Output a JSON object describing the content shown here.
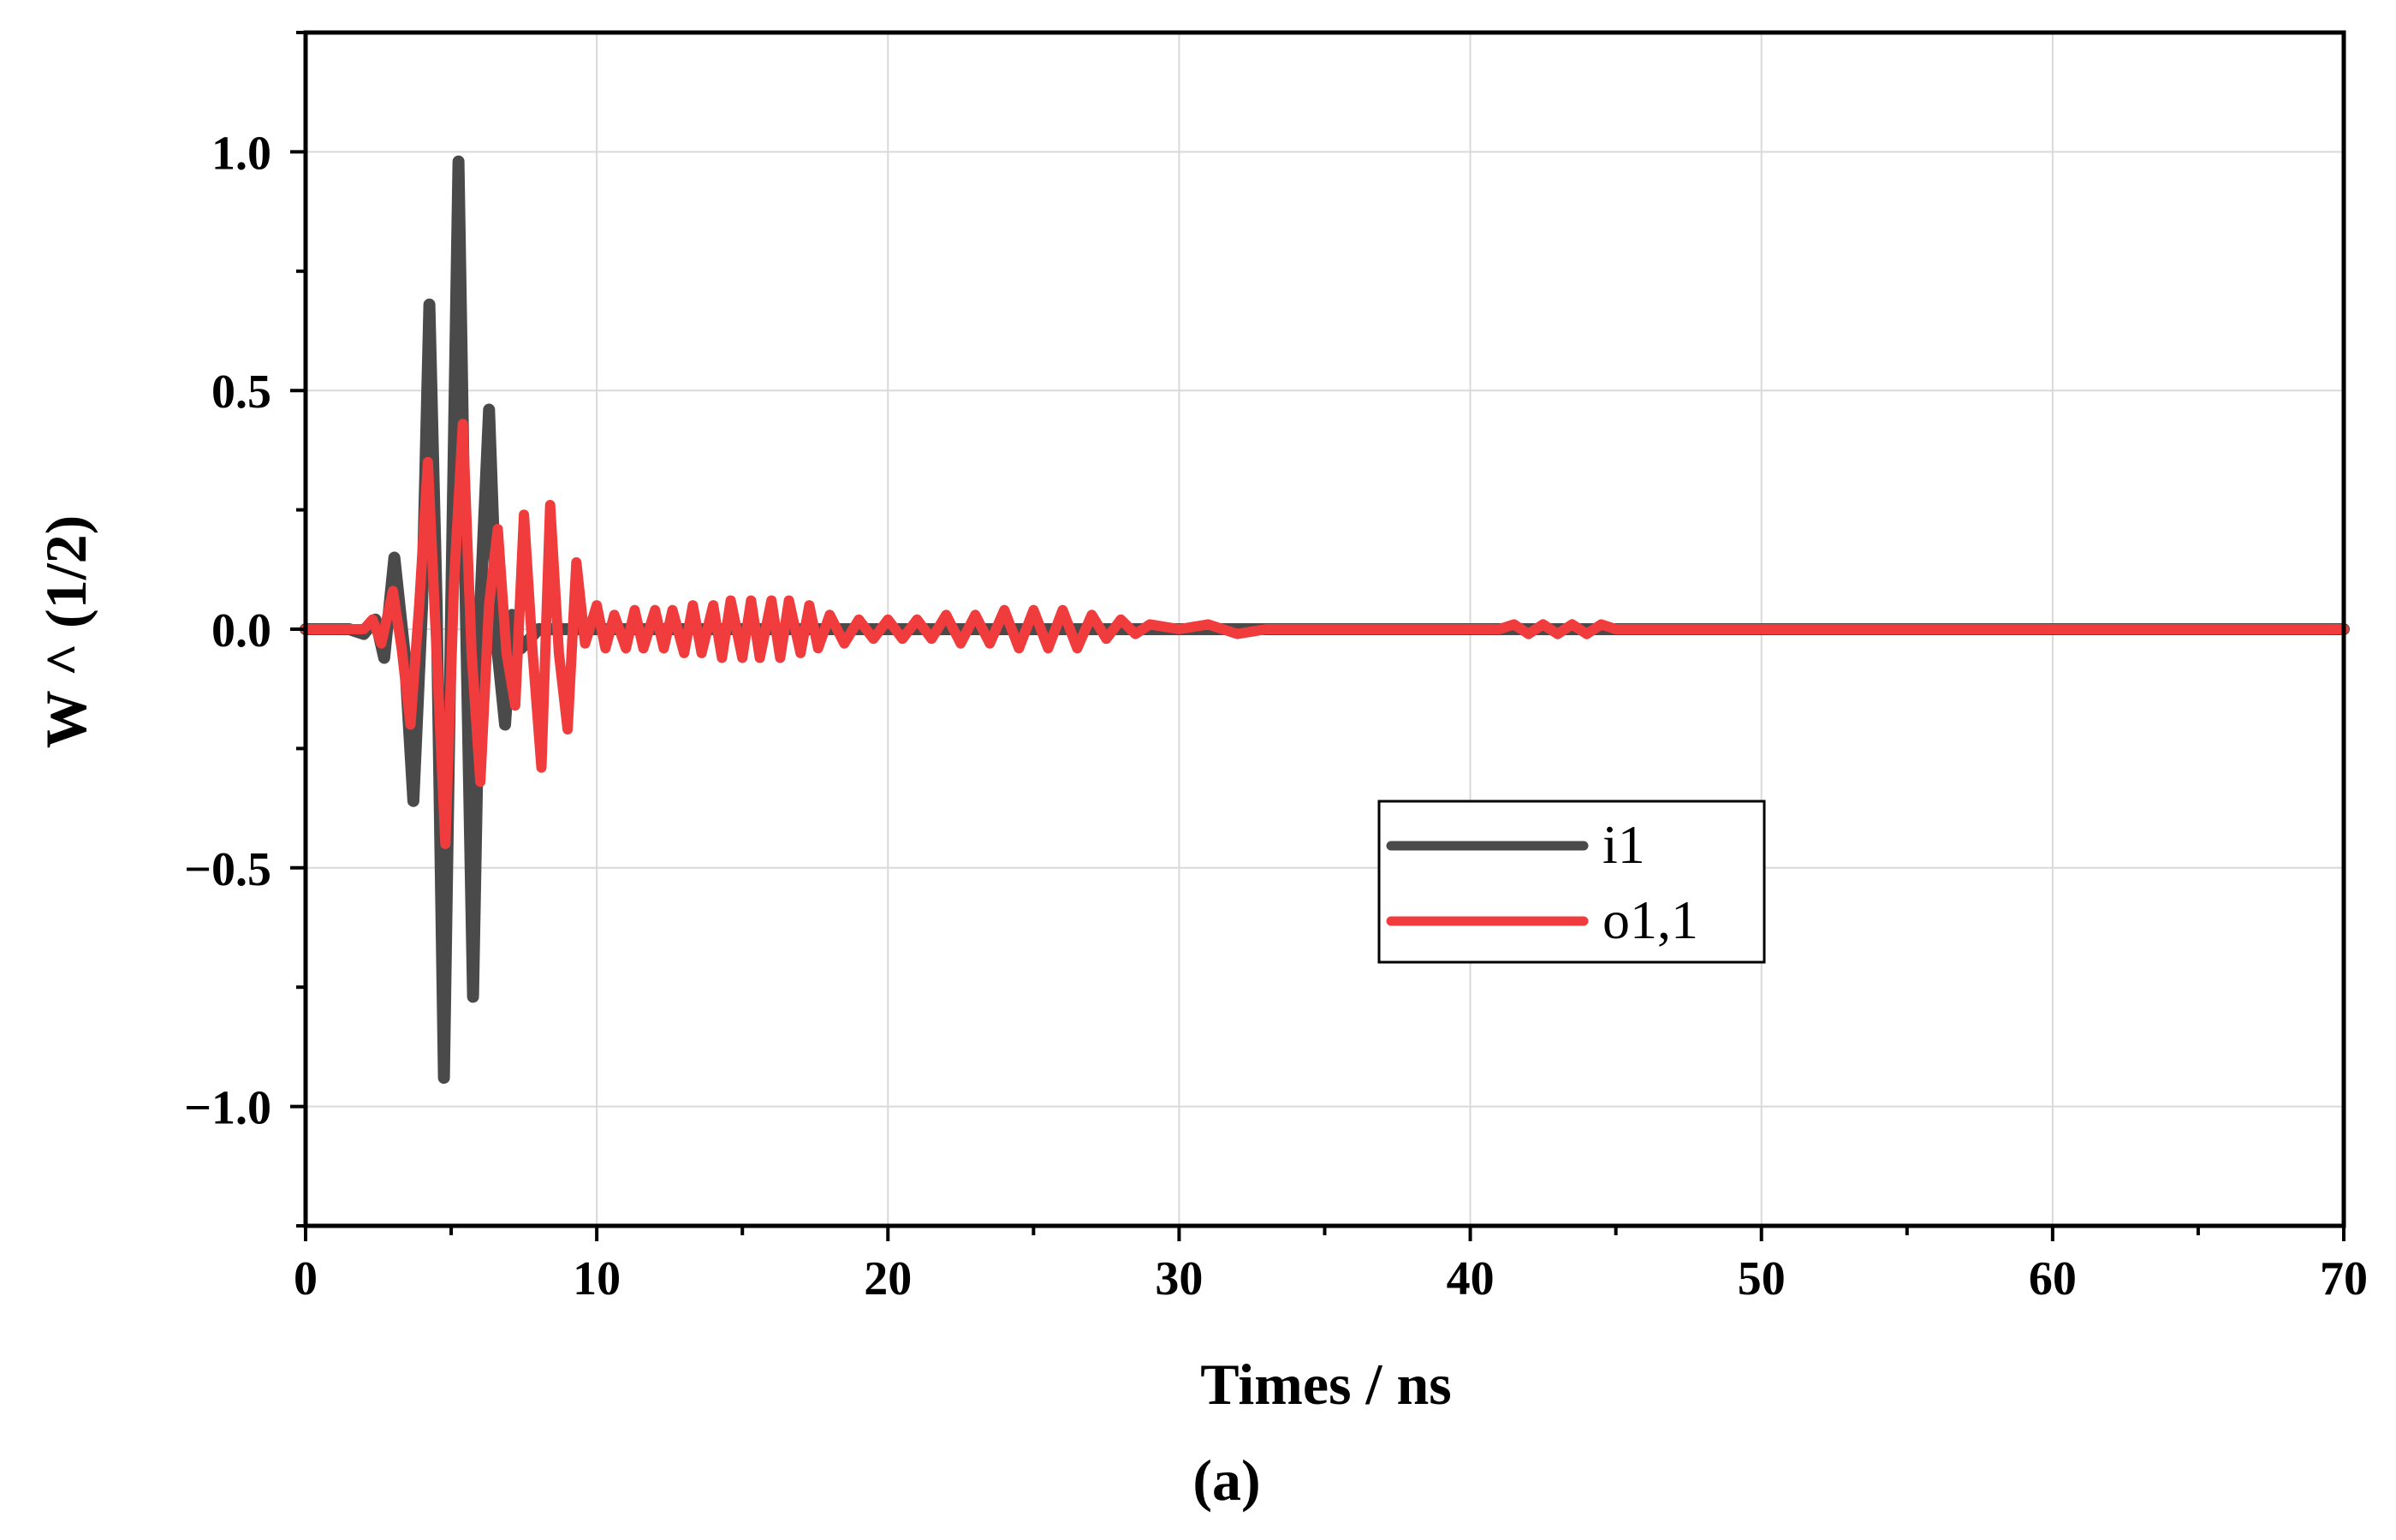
{
  "chart_data": {
    "type": "line",
    "xlabel": "Times / ns",
    "ylabel": "W ^ (1/2)",
    "caption": "(a)",
    "xlim": [
      0,
      70
    ],
    "ylim": [
      -1.25,
      1.25
    ],
    "x_ticks": [
      0,
      10,
      20,
      30,
      40,
      50,
      60,
      70
    ],
    "x_tick_labels": [
      "0",
      "10",
      "20",
      "30",
      "40",
      "50",
      "60",
      "70"
    ],
    "y_ticks": [
      -1.0,
      -0.5,
      0.0,
      0.5,
      1.0
    ],
    "y_tick_labels": [
      "−1.0",
      "−0.5",
      "0.0",
      "0.5",
      "1.0"
    ],
    "grid": true,
    "legend_position": "center-right",
    "series": [
      {
        "name": "i1",
        "color": "#4a4a4a",
        "x": [
          0,
          1.5,
          2.0,
          2.4,
          2.7,
          3.05,
          3.4,
          3.7,
          4.0,
          4.25,
          4.5,
          4.75,
          5.0,
          5.25,
          5.5,
          5.75,
          6.0,
          6.3,
          6.6,
          6.85,
          7.1,
          7.4,
          8.0,
          70
        ],
        "y": [
          0,
          0,
          -0.01,
          0.02,
          -0.06,
          0.15,
          -0.05,
          -0.36,
          0.05,
          0.68,
          0.05,
          -0.94,
          0.05,
          0.98,
          0.05,
          -0.77,
          0.05,
          0.46,
          -0.05,
          -0.2,
          0.03,
          -0.04,
          0,
          0
        ]
      },
      {
        "name": "o1,1",
        "color": "#f03c3c",
        "x": [
          0,
          2.0,
          2.3,
          2.6,
          3.0,
          3.3,
          3.6,
          3.9,
          4.2,
          4.5,
          4.8,
          5.1,
          5.4,
          5.7,
          6.0,
          6.3,
          6.6,
          6.9,
          7.2,
          7.5,
          7.8,
          8.1,
          8.4,
          8.7,
          9.0,
          9.3,
          9.6,
          10.0,
          10.3,
          10.6,
          11.0,
          11.3,
          11.6,
          12.0,
          12.3,
          12.6,
          13.0,
          13.3,
          13.6,
          14.0,
          14.3,
          14.6,
          15.0,
          15.3,
          15.6,
          16.0,
          16.3,
          16.6,
          17.0,
          17.3,
          17.6,
          18.0,
          18.5,
          19.0,
          19.5,
          20.0,
          20.5,
          21.0,
          21.5,
          22.0,
          22.5,
          23.0,
          23.5,
          24.0,
          24.5,
          25.0,
          25.5,
          26.0,
          26.5,
          27.0,
          27.5,
          28.0,
          28.5,
          29.0,
          30.0,
          31.0,
          32.0,
          33.0,
          41.0,
          41.5,
          42.0,
          42.5,
          43.0,
          43.5,
          44.0,
          44.5,
          45.0,
          46.0,
          70
        ],
        "y": [
          0,
          0,
          0.02,
          -0.03,
          0.08,
          -0.04,
          -0.2,
          0.05,
          0.35,
          -0.05,
          -0.45,
          0.1,
          0.43,
          -0.05,
          -0.32,
          0.05,
          0.21,
          -0.05,
          -0.16,
          0.24,
          -0.05,
          -0.29,
          0.26,
          -0.05,
          -0.21,
          0.14,
          -0.03,
          0.05,
          -0.04,
          0.03,
          -0.04,
          0.04,
          -0.04,
          0.04,
          -0.04,
          0.04,
          -0.05,
          0.05,
          -0.05,
          0.05,
          -0.06,
          0.06,
          -0.06,
          0.06,
          -0.06,
          0.06,
          -0.06,
          0.06,
          -0.05,
          0.05,
          -0.04,
          0.03,
          -0.03,
          0.02,
          -0.02,
          0.02,
          -0.02,
          0.02,
          -0.02,
          0.03,
          -0.03,
          0.03,
          -0.03,
          0.04,
          -0.04,
          0.04,
          -0.04,
          0.04,
          -0.04,
          0.03,
          -0.02,
          0.02,
          -0.01,
          0.01,
          0,
          0.01,
          -0.01,
          0,
          0,
          0.01,
          -0.01,
          0.01,
          -0.01,
          0.01,
          -0.01,
          0.01,
          0,
          0,
          0
        ]
      }
    ]
  }
}
